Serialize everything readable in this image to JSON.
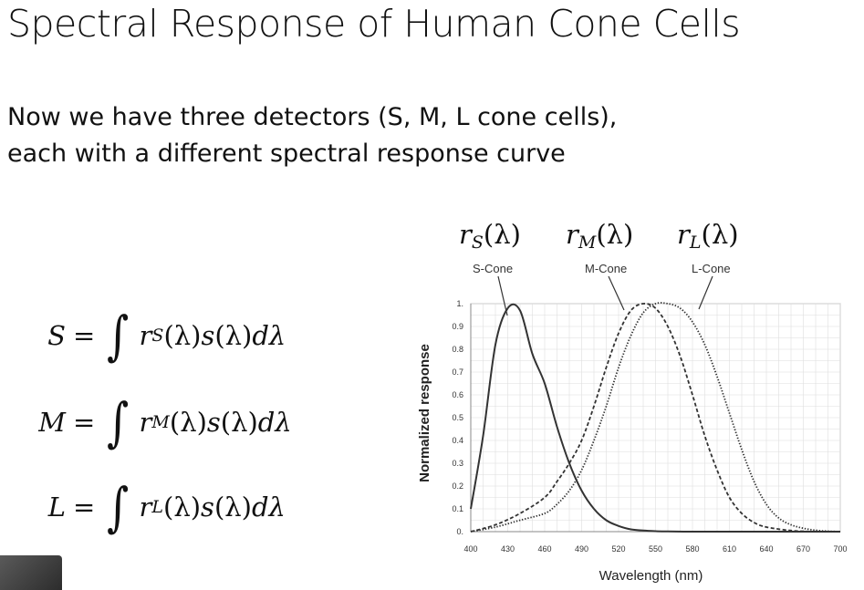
{
  "slide": {
    "title": "Spectral Response of Human Cone Cells",
    "body_line1": "Now we have three detectors (S, M, L cone cells),",
    "body_line2": "each with a different spectral response curve"
  },
  "equations": [
    {
      "lhs": "S",
      "eq": "=",
      "integral": "∫",
      "r": "r",
      "sub": "S",
      "rest1": "(λ)",
      "s": "s",
      "rest2": "(λ) ",
      "d": "dλ"
    },
    {
      "lhs": "M",
      "eq": "=",
      "integral": "∫",
      "r": "r",
      "sub": "M",
      "rest1": "(λ)",
      "s": "s",
      "rest2": "(λ) ",
      "d": "dλ"
    },
    {
      "lhs": "L",
      "eq": "=",
      "integral": "∫",
      "r": "r",
      "sub": "L",
      "rest1": "(λ)",
      "s": "s",
      "rest2": "(λ) ",
      "d": "dλ"
    }
  ],
  "curve_labels": [
    {
      "r": "r",
      "sub": "S",
      "arg": "(λ)",
      "name": "S-Cone"
    },
    {
      "r": "r",
      "sub": "M",
      "arg": "(λ)",
      "name": "M-Cone"
    },
    {
      "r": "r",
      "sub": "L",
      "arg": "(λ)",
      "name": "L-Cone"
    }
  ],
  "chart_data": {
    "type": "line",
    "xlabel": "Wavelength (nm)",
    "ylabel": "Normalized response",
    "xlim": [
      400,
      700
    ],
    "ylim": [
      0,
      1
    ],
    "grid": true,
    "xticks": [
      "400",
      "430",
      "460",
      "490",
      "520",
      "550",
      "580",
      "610",
      "640",
      "670",
      "700"
    ],
    "yticks": [
      "0.",
      "0.1",
      "0.2",
      "0.3",
      "0.4",
      "0.5",
      "0.6",
      "0.7",
      "0.8",
      "0.9",
      "1."
    ],
    "series": [
      {
        "name": "S-Cone",
        "style": "solid",
        "x": [
          400,
          410,
          420,
          430,
          440,
          450,
          460,
          470,
          480,
          490,
          500,
          510,
          520,
          530,
          540,
          550,
          560,
          580,
          600,
          650,
          700
        ],
        "y": [
          0.1,
          0.42,
          0.82,
          0.98,
          0.97,
          0.78,
          0.65,
          0.46,
          0.3,
          0.18,
          0.1,
          0.05,
          0.025,
          0.01,
          0.005,
          0.002,
          0.001,
          0.0,
          0.0,
          0.0,
          0.0
        ]
      },
      {
        "name": "M-Cone",
        "style": "dashed",
        "x": [
          400,
          420,
          440,
          460,
          470,
          480,
          490,
          500,
          510,
          520,
          530,
          540,
          550,
          560,
          570,
          580,
          590,
          600,
          610,
          620,
          630,
          640,
          660,
          680,
          700
        ],
        "y": [
          0.0,
          0.03,
          0.08,
          0.15,
          0.22,
          0.3,
          0.4,
          0.55,
          0.72,
          0.87,
          0.97,
          1.0,
          0.98,
          0.9,
          0.77,
          0.6,
          0.42,
          0.27,
          0.15,
          0.08,
          0.04,
          0.02,
          0.005,
          0.0,
          0.0
        ]
      },
      {
        "name": "L-Cone",
        "style": "dotted",
        "x": [
          400,
          420,
          440,
          460,
          470,
          480,
          490,
          500,
          510,
          520,
          530,
          540,
          550,
          560,
          570,
          580,
          590,
          600,
          610,
          620,
          630,
          640,
          650,
          660,
          670,
          680,
          690,
          700
        ],
        "y": [
          0.0,
          0.02,
          0.05,
          0.08,
          0.12,
          0.18,
          0.27,
          0.4,
          0.55,
          0.72,
          0.86,
          0.96,
          1.0,
          1.0,
          0.98,
          0.92,
          0.82,
          0.68,
          0.52,
          0.36,
          0.22,
          0.12,
          0.06,
          0.03,
          0.015,
          0.006,
          0.002,
          0.0
        ]
      }
    ]
  }
}
